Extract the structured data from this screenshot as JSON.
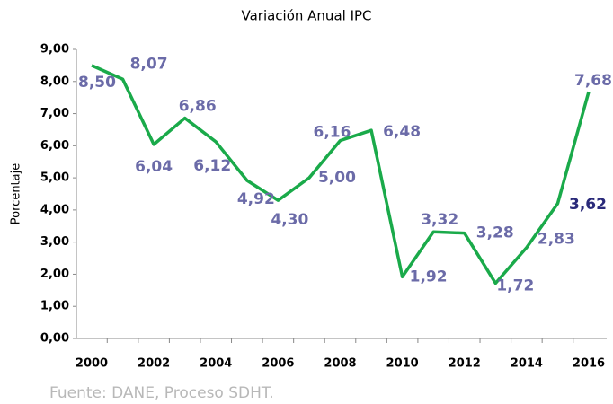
{
  "chart_data": {
    "type": "line",
    "title": "Variación Anual IPC",
    "ylabel": "Porcentaje",
    "source": "Fuente:  DANE,  Proceso  SDHT.",
    "categories": [
      "2000",
      null,
      "2002",
      null,
      "2004",
      null,
      "2006",
      null,
      "2008",
      null,
      "2010",
      null,
      "2012",
      null,
      "2014",
      null,
      "2016"
    ],
    "series": [
      {
        "name": "IPC",
        "color": "#1aaa4a",
        "values": [
          8.5,
          8.07,
          6.04,
          6.86,
          6.12,
          4.92,
          4.3,
          5.0,
          6.16,
          6.48,
          1.92,
          3.32,
          3.28,
          1.72,
          2.83,
          4.2,
          7.68
        ],
        "value_labels": [
          "8,50",
          "8,07",
          "6,04",
          "6,86",
          "6,12",
          "4,92",
          "4,30",
          "5,00",
          "6,16",
          "6,48",
          "1,92",
          "3,32",
          "3,28",
          "1,72",
          "2,83",
          null,
          "7,68"
        ]
      }
    ],
    "annotations": [
      {
        "text": "3,62"
      }
    ],
    "ylim": [
      0,
      9
    ],
    "yticks": [
      {
        "value": 0,
        "label": "0,00"
      },
      {
        "value": 1,
        "label": "1,00"
      },
      {
        "value": 2,
        "label": "2,00"
      },
      {
        "value": 3,
        "label": "3,00"
      },
      {
        "value": 4,
        "label": "4,00"
      },
      {
        "value": 5,
        "label": "5,00"
      },
      {
        "value": 6,
        "label": "6,00"
      },
      {
        "value": 7,
        "label": "7,00"
      },
      {
        "value": 8,
        "label": "8,00"
      },
      {
        "value": 9,
        "label": "9,00"
      }
    ],
    "grid": false
  }
}
